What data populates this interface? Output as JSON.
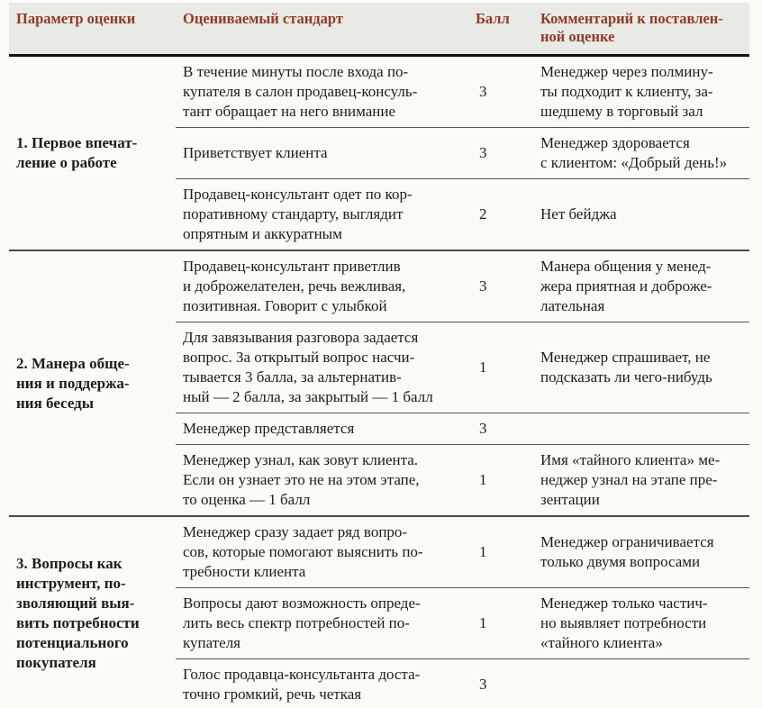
{
  "colors": {
    "header_text": "#8e3b28",
    "header_background": "#e9e9e5",
    "body_text": "#1d1d1b",
    "page_background": "#fafaf7",
    "rule_heavy": "#131311",
    "rule_section": "#4a4a46",
    "rule_row": "#55534f"
  },
  "table": {
    "header": {
      "col_param": "Параметр оценки",
      "col_standard": "Оцениваемый стандарт",
      "col_score": "Балл",
      "col_comment": "Комментарий к поставлен-\nной оценке"
    },
    "sections": [
      {
        "param": "1. Первое впечат-\nление о работе",
        "rows": [
          {
            "standard": "В течение минуты после входа по-\nкупателя в салон продавец-консуль-\nтант обращает на него внимание",
            "score": "3",
            "comment": "Менеджер через полмину-\nты подходит к клиенту, за-\nшедшему в торговый зал"
          },
          {
            "standard": "Приветствует клиента",
            "score": "3",
            "comment": "Менеджер здоровается\nс клиентом: «Добрый день!»"
          },
          {
            "standard": "Продавец-консультант одет по кор-\nпоративному стандарту, выглядит\nопрятным и аккуратным",
            "score": "2",
            "comment": "Нет бейджа"
          }
        ]
      },
      {
        "param": "2. Манера обще-\nния и поддержа-\nния беседы",
        "rows": [
          {
            "standard": "Продавец-консультант приветлив\nи доброжелателен, речь вежливая,\nпозитивная. Говорит с улыбкой",
            "score": "3",
            "comment": "Манера общения у менед-\nжера приятная и доброже-\nлательная"
          },
          {
            "standard": "Для завязывания разговора задается\nвопрос. За открытый вопрос насчи-\nтывается 3 балла, за альтернатив-\nный — 2 балла, за закрытый — 1 балл",
            "score": "1",
            "comment": "Менеджер спрашивает, не\nподсказать ли чего-нибудь"
          },
          {
            "standard": "Менеджер представляется",
            "score": "3",
            "comment": ""
          },
          {
            "standard": "Менеджер узнал, как зовут клиента.\nЕсли он узнает это не на этом этапе,\nто оценка — 1 балл",
            "score": "1",
            "comment": "Имя «тайного клиента» ме-\nнеджер узнал на этапе пре-\nзентации"
          }
        ]
      },
      {
        "param": "3. Вопросы как\nинструмент, по-\nзволяющий выя-\nвить потребности\nпотенциального\nпокупателя",
        "rows": [
          {
            "standard": "Менеджер сразу задает ряд вопро-\nсов, которые помогают выяснить по-\nтребности клиента",
            "score": "1",
            "comment": "Менеджер ограничивается\nтолько двумя вопросами"
          },
          {
            "standard": "Вопросы дают возможность опреде-\nлить весь спектр потребностей по-\nкупателя",
            "score": "1",
            "comment": "Менеджер только частич-\nно выявляет потребности\n«тайного клиента»"
          },
          {
            "standard": "Голос продавца-консультанта доста-\nточно громкий, речь четкая",
            "score": "3",
            "comment": ""
          }
        ]
      }
    ]
  }
}
